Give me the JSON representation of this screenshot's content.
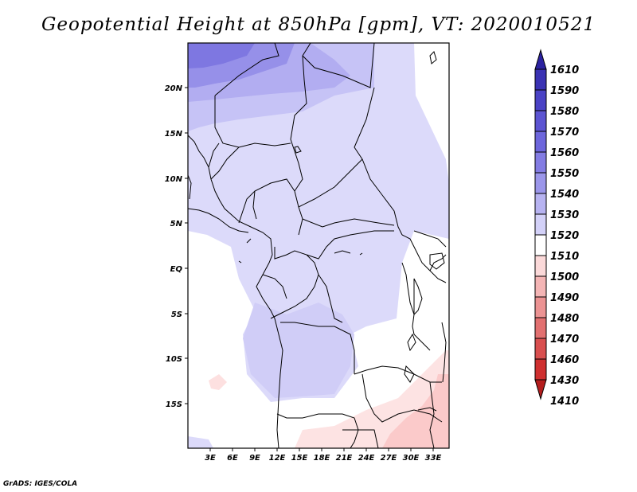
{
  "title": "Geopotential Height at 850hPa [gpm], VT: 2020010521",
  "credit": "GrADS: IGES/COLA",
  "map": {
    "lat_labels": [
      "20N",
      "15N",
      "10N",
      "5N",
      "EQ",
      "5S",
      "10S",
      "15S"
    ],
    "lon_labels": [
      "3E",
      "6E",
      "9E",
      "12E",
      "15E",
      "18E",
      "21E",
      "24E",
      "27E",
      "30E",
      "33E"
    ]
  },
  "colorbar": {
    "levels": [
      "1610",
      "1590",
      "1580",
      "1570",
      "1560",
      "1550",
      "1540",
      "1530",
      "1520",
      "1510",
      "1500",
      "1490",
      "1480",
      "1470",
      "1460",
      "1430",
      "1410"
    ],
    "colors": [
      "#2b22a0",
      "#3a32b3",
      "#4a42c5",
      "#5c54d2",
      "#6d66dc",
      "#837ce3",
      "#9b96ea",
      "#b7b3f1",
      "#d3d1f8",
      "#ffffff",
      "#fbd9d9",
      "#f4b5b5",
      "#ec9393",
      "#e27070",
      "#d94f4f",
      "#cf3030",
      "#b41d1d"
    ]
  }
}
